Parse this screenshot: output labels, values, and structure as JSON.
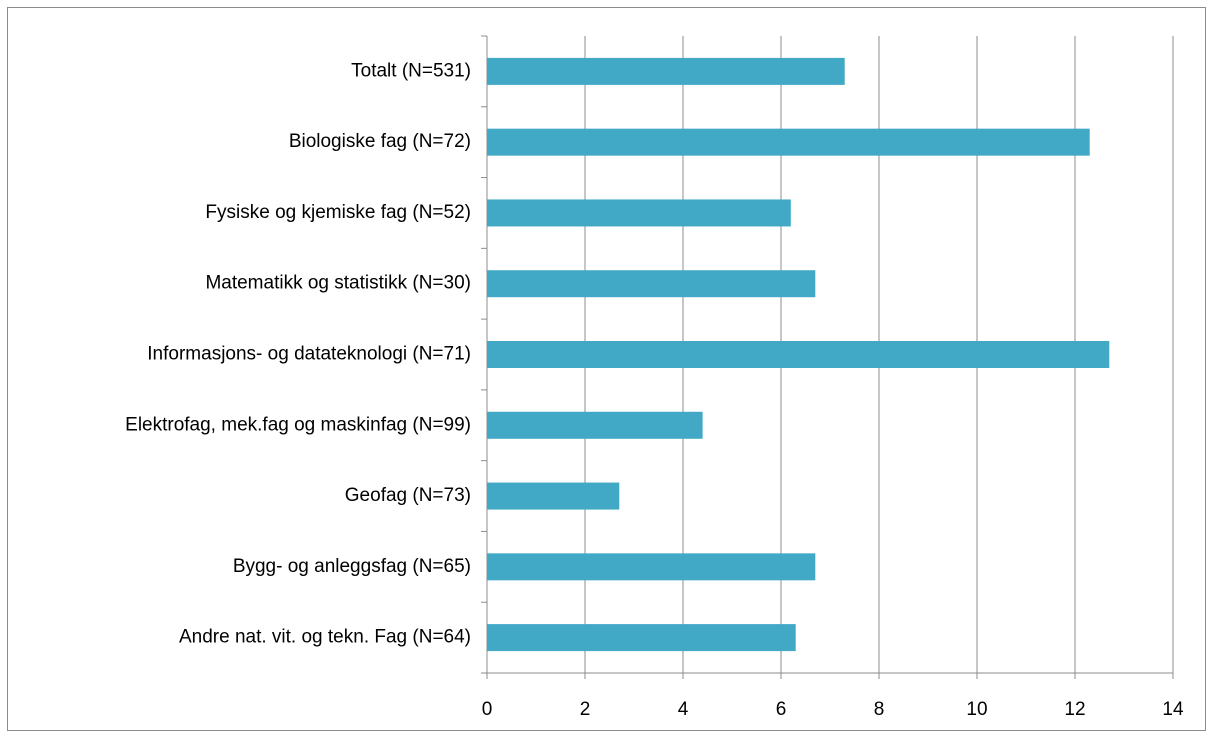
{
  "chart_data": {
    "type": "barh",
    "categories": [
      "Totalt (N=531)",
      "Biologiske fag (N=72)",
      "Fysiske og kjemiske fag (N=52)",
      "Matematikk og statistikk (N=30)",
      "Informasjons- og datateknologi (N=71)",
      "Elektrofag, mek.fag og maskinfag (N=99)",
      "Geofag (N=73)",
      "Bygg- og anleggsfag (N=65)",
      "Andre nat. vit. og tekn. Fag (N=64)"
    ],
    "values": [
      7.3,
      12.3,
      6.2,
      6.7,
      12.7,
      4.4,
      2.7,
      6.7,
      6.3
    ],
    "color": "#41a9c6",
    "xlim": [
      0,
      14
    ],
    "xticks": [
      0,
      2,
      4,
      6,
      8,
      10,
      12,
      14
    ],
    "grid": true
  }
}
